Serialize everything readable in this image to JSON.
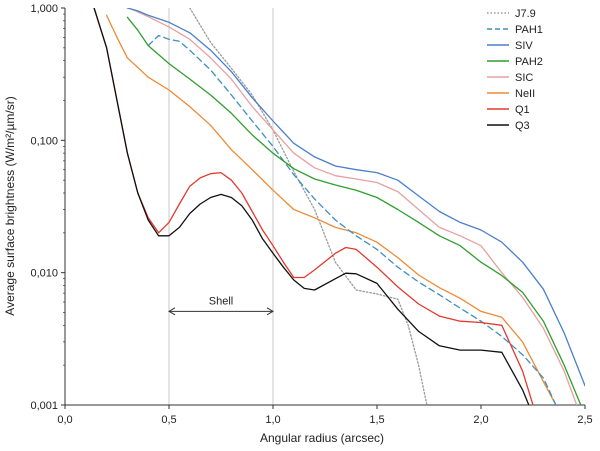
{
  "chart_data": {
    "type": "line",
    "title": "",
    "xlabel": "Angular radius (arcsec)",
    "ylabel": "Average surface brightness (W/m²/µm/sr)",
    "xlim": [
      0,
      2.5
    ],
    "ylim": [
      0.001,
      1.0
    ],
    "yscale": "log",
    "grid": "vertical lines at 0.5 and 1.0",
    "legend_position": "top-right",
    "x_ticks": [
      "0,0",
      "0,5",
      "1,0",
      "1,5",
      "2,0",
      "2,5"
    ],
    "x_tick_values": [
      0,
      0.5,
      1.0,
      1.5,
      2.0,
      2.5
    ],
    "y_ticks": [
      "0,001",
      "0,010",
      "0,100",
      "1,000"
    ],
    "y_tick_values": [
      0.001,
      0.01,
      0.1,
      1.0
    ],
    "annotation": {
      "text": "Shell",
      "from": 0.5,
      "to": 1.0,
      "y": 0.0051
    },
    "series": [
      {
        "name": "J7.9",
        "color": "#9a9a9a",
        "style": "dotted",
        "x": [
          0.6,
          0.7,
          0.8,
          0.9,
          1.0,
          1.1,
          1.2,
          1.3,
          1.4,
          1.5,
          1.6,
          1.65,
          1.7,
          1.74
        ],
        "y": [
          1.0,
          0.55,
          0.35,
          0.22,
          0.12,
          0.058,
          0.03,
          0.012,
          0.0074,
          0.0069,
          0.0063,
          0.004,
          0.002,
          0.001
        ]
      },
      {
        "name": "PAH1",
        "color": "#3d8fc2",
        "style": "dashed",
        "x": [
          0.4,
          0.45,
          0.5,
          0.55,
          0.6,
          0.7,
          0.8,
          0.9,
          1.0,
          1.1,
          1.2,
          1.3,
          1.4,
          1.5,
          1.6,
          1.7,
          1.8,
          1.9,
          2.0,
          2.1,
          2.2,
          2.3,
          2.36
        ],
        "y": [
          0.52,
          0.62,
          0.58,
          0.56,
          0.48,
          0.34,
          0.22,
          0.14,
          0.09,
          0.055,
          0.036,
          0.025,
          0.019,
          0.015,
          0.011,
          0.0085,
          0.0068,
          0.0054,
          0.0043,
          0.0033,
          0.0024,
          0.0016,
          0.001
        ]
      },
      {
        "name": "SIV",
        "color": "#4a7fcb",
        "style": "solid",
        "x": [
          0.3,
          0.35,
          0.4,
          0.5,
          0.6,
          0.7,
          0.8,
          0.9,
          1.0,
          1.1,
          1.2,
          1.3,
          1.4,
          1.5,
          1.6,
          1.7,
          1.8,
          1.9,
          2.0,
          2.1,
          2.2,
          2.3,
          2.4,
          2.5
        ],
        "y": [
          1.0,
          0.95,
          0.88,
          0.78,
          0.65,
          0.48,
          0.33,
          0.21,
          0.14,
          0.095,
          0.075,
          0.064,
          0.06,
          0.057,
          0.05,
          0.038,
          0.029,
          0.024,
          0.021,
          0.017,
          0.012,
          0.0075,
          0.0035,
          0.0014
        ]
      },
      {
        "name": "PAH2",
        "color": "#2f9e2f",
        "style": "solid",
        "x": [
          0.3,
          0.35,
          0.4,
          0.5,
          0.6,
          0.7,
          0.8,
          0.9,
          1.0,
          1.1,
          1.2,
          1.3,
          1.4,
          1.5,
          1.6,
          1.7,
          1.8,
          1.9,
          2.0,
          2.1,
          2.2,
          2.3,
          2.4,
          2.48
        ],
        "y": [
          0.85,
          0.68,
          0.52,
          0.38,
          0.29,
          0.22,
          0.16,
          0.11,
          0.08,
          0.061,
          0.051,
          0.046,
          0.042,
          0.037,
          0.03,
          0.024,
          0.019,
          0.016,
          0.012,
          0.0095,
          0.0071,
          0.0043,
          0.002,
          0.001
        ]
      },
      {
        "name": "SIC",
        "color": "#e6a1a1",
        "style": "solid",
        "x": [
          0.32,
          0.4,
          0.5,
          0.6,
          0.7,
          0.8,
          0.9,
          1.0,
          1.1,
          1.2,
          1.3,
          1.4,
          1.5,
          1.6,
          1.7,
          1.8,
          1.9,
          2.0,
          2.1,
          2.2,
          2.3,
          2.4,
          2.46
        ],
        "y": [
          0.98,
          0.86,
          0.72,
          0.58,
          0.42,
          0.29,
          0.18,
          0.12,
          0.08,
          0.062,
          0.054,
          0.051,
          0.048,
          0.041,
          0.03,
          0.022,
          0.019,
          0.016,
          0.01,
          0.0065,
          0.0038,
          0.0018,
          0.001
        ]
      },
      {
        "name": "NeII",
        "color": "#ef8a36",
        "style": "solid",
        "x": [
          0.2,
          0.25,
          0.3,
          0.4,
          0.5,
          0.6,
          0.7,
          0.8,
          0.9,
          1.0,
          1.1,
          1.2,
          1.3,
          1.4,
          1.5,
          1.6,
          1.7,
          1.8,
          1.9,
          2.0,
          2.1,
          2.2,
          2.3,
          2.36
        ],
        "y": [
          0.88,
          0.6,
          0.42,
          0.3,
          0.24,
          0.18,
          0.13,
          0.085,
          0.06,
          0.042,
          0.03,
          0.026,
          0.022,
          0.02,
          0.017,
          0.013,
          0.0096,
          0.0077,
          0.0064,
          0.0051,
          0.0046,
          0.003,
          0.0015,
          0.001
        ]
      },
      {
        "name": "Q1",
        "color": "#e23a2e",
        "style": "solid",
        "x": [
          0.14,
          0.2,
          0.25,
          0.3,
          0.35,
          0.4,
          0.45,
          0.5,
          0.55,
          0.6,
          0.65,
          0.7,
          0.75,
          0.8,
          0.85,
          0.9,
          0.95,
          1.0,
          1.05,
          1.1,
          1.15,
          1.2,
          1.3,
          1.35,
          1.4,
          1.5,
          1.6,
          1.7,
          1.8,
          1.9,
          2.0,
          2.1,
          2.2,
          2.25
        ],
        "y": [
          1.0,
          0.5,
          0.2,
          0.08,
          0.04,
          0.026,
          0.02,
          0.024,
          0.033,
          0.045,
          0.052,
          0.056,
          0.057,
          0.05,
          0.04,
          0.029,
          0.021,
          0.016,
          0.012,
          0.0092,
          0.0092,
          0.0105,
          0.014,
          0.0155,
          0.015,
          0.011,
          0.0078,
          0.0058,
          0.0047,
          0.0043,
          0.0042,
          0.004,
          0.0018,
          0.001
        ]
      },
      {
        "name": "Q3",
        "color": "#111111",
        "style": "solid",
        "x": [
          0.14,
          0.2,
          0.25,
          0.3,
          0.35,
          0.4,
          0.45,
          0.5,
          0.55,
          0.6,
          0.65,
          0.7,
          0.75,
          0.8,
          0.85,
          0.9,
          0.95,
          1.0,
          1.05,
          1.1,
          1.15,
          1.2,
          1.3,
          1.35,
          1.4,
          1.5,
          1.6,
          1.7,
          1.8,
          1.9,
          2.0,
          2.1,
          2.2,
          2.23
        ],
        "y": [
          1.0,
          0.5,
          0.2,
          0.08,
          0.04,
          0.025,
          0.019,
          0.019,
          0.022,
          0.028,
          0.033,
          0.037,
          0.039,
          0.037,
          0.032,
          0.025,
          0.018,
          0.014,
          0.011,
          0.0088,
          0.0076,
          0.0074,
          0.009,
          0.0099,
          0.0098,
          0.0083,
          0.0053,
          0.0036,
          0.0028,
          0.0026,
          0.0026,
          0.0025,
          0.0013,
          0.001
        ]
      }
    ]
  }
}
